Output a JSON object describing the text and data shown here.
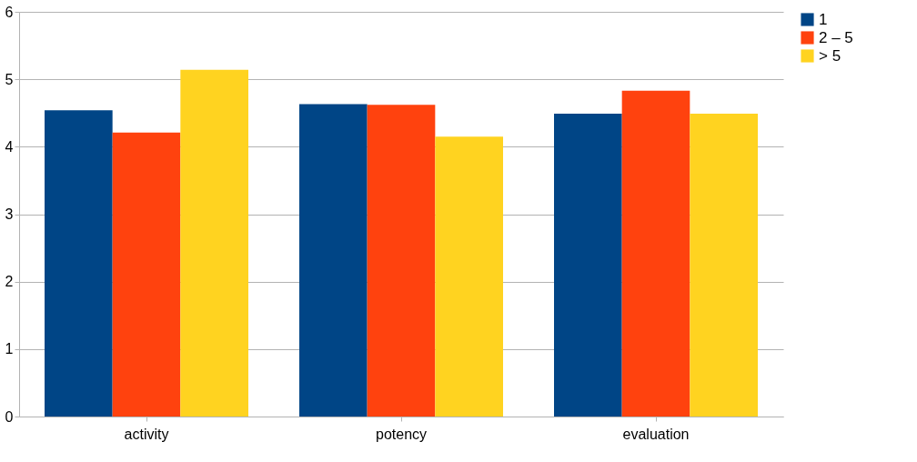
{
  "chart_data": {
    "type": "bar",
    "categories": [
      "activity",
      "potency",
      "evaluation"
    ],
    "series": [
      {
        "name": "1",
        "color": "#004586",
        "values": [
          4.54,
          4.63,
          4.49
        ]
      },
      {
        "name": "2 – 5",
        "color": "#ff420e",
        "values": [
          4.21,
          4.62,
          4.83
        ]
      },
      {
        "name": "> 5",
        "color": "#ffd320",
        "values": [
          5.14,
          4.15,
          4.49
        ]
      }
    ],
    "ylim": [
      0,
      6
    ],
    "yticks": [
      0,
      1,
      2,
      3,
      4,
      5,
      6
    ],
    "grid": "y",
    "legend": "right"
  }
}
